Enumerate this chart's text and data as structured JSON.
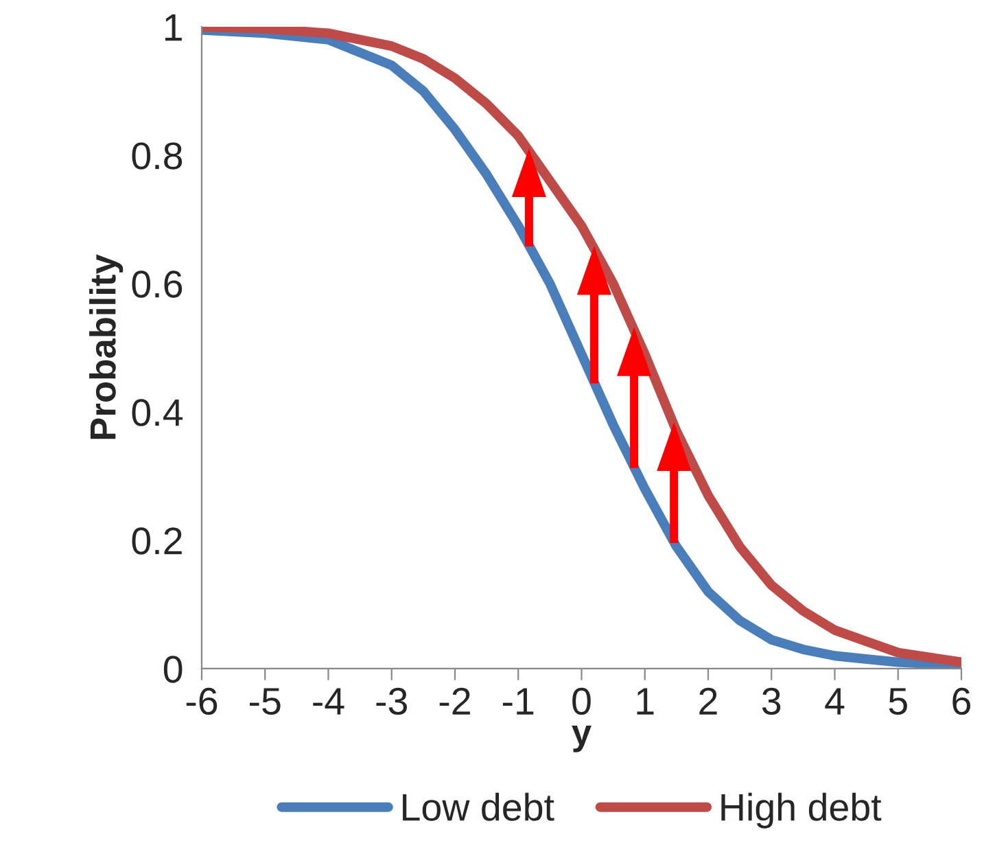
{
  "chart_data": {
    "type": "line",
    "xlabel": "y",
    "ylabel": "Probability",
    "x": [
      -6,
      -5,
      -4,
      -3,
      -2.5,
      -2,
      -1.5,
      -1,
      -0.5,
      0,
      0.5,
      1,
      1.5,
      2,
      2.5,
      3,
      3.5,
      4,
      5,
      6
    ],
    "series": [
      {
        "name": "Low debt",
        "color": "#4a7ebb",
        "values": [
          0.995,
          0.99,
          0.98,
          0.94,
          0.9,
          0.84,
          0.77,
          0.69,
          0.6,
          0.49,
          0.38,
          0.28,
          0.19,
          0.12,
          0.075,
          0.045,
          0.03,
          0.02,
          0.01,
          0.005
        ]
      },
      {
        "name": "High debt",
        "color": "#be4b48",
        "values": [
          1.0,
          0.997,
          0.99,
          0.97,
          0.95,
          0.92,
          0.88,
          0.83,
          0.76,
          0.69,
          0.6,
          0.49,
          0.37,
          0.27,
          0.19,
          0.13,
          0.09,
          0.06,
          0.025,
          0.01
        ]
      }
    ],
    "xlim": [
      -6,
      6
    ],
    "xticks": [
      -6,
      -5,
      -4,
      -3,
      -2,
      -1,
      0,
      1,
      2,
      3,
      4,
      5,
      6
    ],
    "ylim": [
      0,
      1
    ],
    "yticks": [
      0,
      0.2,
      0.4,
      0.6,
      0.8,
      1
    ],
    "grid": false,
    "legend": "bottom",
    "marker": "none",
    "line_style": "solid"
  }
}
